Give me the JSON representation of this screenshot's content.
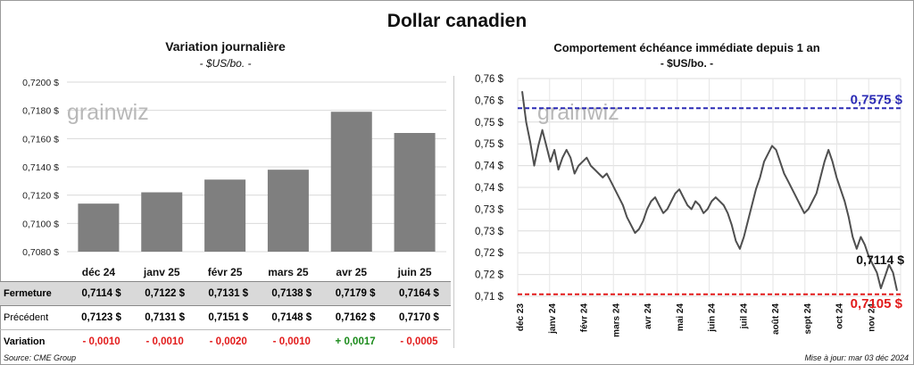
{
  "title": "Dollar canadien",
  "left_chart": {
    "title": "Variation  journalière",
    "units": "- $US/bo. -"
  },
  "right_chart": {
    "title": "Comportement échéance immédiate depuis 1 an",
    "units": "- $US/bo. -"
  },
  "watermark": "grainwiz",
  "chart_data": [
    {
      "type": "bar",
      "categories": [
        "déc 24",
        "janv 25",
        "févr 25",
        "mars 25",
        "avr 25",
        "juin 25"
      ],
      "values": [
        0.7114,
        0.7122,
        0.7131,
        0.7138,
        0.7179,
        0.7164
      ],
      "ylim": [
        0.708,
        0.72
      ],
      "yticks": [
        "0,7080 $",
        "0,7100 $",
        "0,7120 $",
        "0,7140 $",
        "0,7160 $",
        "0,7180 $",
        "0,7200 $"
      ],
      "color": "#7f7f7f",
      "grid": true
    },
    {
      "type": "line",
      "xlabels": [
        "déc 23",
        "janv 24",
        "févr 24",
        "mars 24",
        "avr 24",
        "mai 24",
        "juin 24",
        "juil 24",
        "août 24",
        "sept 24",
        "oct 24",
        "nov 24"
      ],
      "ylim": [
        0.71,
        0.765
      ],
      "yticks": [
        "0,71 $",
        "0,72 $",
        "0,72 $",
        "0,73 $",
        "0,73 $",
        "0,74 $",
        "0,74 $",
        "0,75 $",
        "0,75 $",
        "0,76 $",
        "0,76 $"
      ],
      "values": [
        0.7618,
        0.754,
        0.749,
        0.743,
        0.748,
        0.752,
        0.748,
        0.744,
        0.747,
        0.742,
        0.745,
        0.747,
        0.745,
        0.741,
        0.743,
        0.744,
        0.745,
        0.743,
        0.742,
        0.741,
        0.74,
        0.741,
        0.739,
        0.737,
        0.735,
        0.733,
        0.73,
        0.728,
        0.726,
        0.727,
        0.729,
        0.732,
        0.734,
        0.735,
        0.733,
        0.731,
        0.732,
        0.734,
        0.736,
        0.737,
        0.735,
        0.733,
        0.732,
        0.734,
        0.733,
        0.731,
        0.732,
        0.734,
        0.735,
        0.734,
        0.733,
        0.731,
        0.728,
        0.724,
        0.722,
        0.725,
        0.729,
        0.733,
        0.737,
        0.74,
        0.744,
        0.746,
        0.748,
        0.747,
        0.744,
        0.741,
        0.739,
        0.737,
        0.735,
        0.733,
        0.731,
        0.732,
        0.734,
        0.736,
        0.74,
        0.744,
        0.747,
        0.744,
        0.74,
        0.737,
        0.734,
        0.73,
        0.725,
        0.722,
        0.725,
        0.723,
        0.72,
        0.718,
        0.716,
        0.712,
        0.715,
        0.718,
        0.716,
        0.7114
      ],
      "lines": [
        {
          "value": 0.7575,
          "label": "0,7575 $",
          "color": "#2b2bb5"
        },
        {
          "value": 0.7105,
          "label": "0,7105 $",
          "color": "#e21b1b"
        }
      ],
      "last_label": "0,7114 $",
      "color": "#4f4f4f",
      "grid": true
    }
  ],
  "table": {
    "rows": [
      {
        "label": "Fermeture",
        "cells": [
          "0,7114  $",
          "0,7122  $",
          "0,7131  $",
          "0,7138  $",
          "0,7179  $",
          "0,7164  $"
        ]
      },
      {
        "label": "Précédent",
        "cells": [
          "0,7123  $",
          "0,7131  $",
          "0,7151  $",
          "0,7148  $",
          "0,7162  $",
          "0,7170  $"
        ]
      },
      {
        "label": "Variation",
        "cells": [
          "- 0,0010",
          "- 0,0010",
          "- 0,0020",
          "- 0,0010",
          "+ 0,0017",
          "- 0,0005"
        ]
      }
    ]
  },
  "footer": {
    "source": "Source: CME Group",
    "updated": "Mise à jour: mar 03 déc 2024"
  }
}
